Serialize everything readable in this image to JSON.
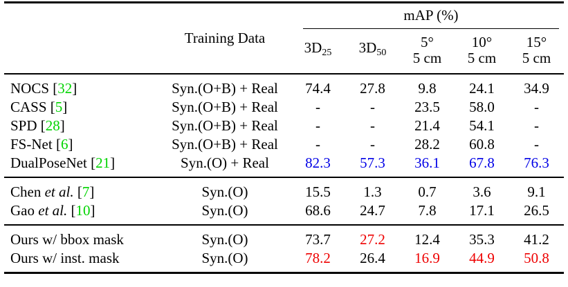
{
  "palette": {
    "green": "#00d400",
    "blue": "#0000e6",
    "red": "#ee0000",
    "rule": "#000000",
    "background": "#ffffff",
    "text": "#000000"
  },
  "format": {
    "bracket_open": "[",
    "bracket_close": "]",
    "etal": "et al."
  },
  "header": {
    "training_data": "Training Data",
    "map_group": "mAP (%)",
    "subcols": [
      {
        "main": "3D",
        "sub": "25"
      },
      {
        "main": "3D",
        "sub": "50"
      },
      {
        "line1": "5°",
        "line2": "5 cm"
      },
      {
        "line1": "10°",
        "line2": "5 cm"
      },
      {
        "line1": "15°",
        "line2": "5 cm"
      }
    ]
  },
  "table": {
    "groups": [
      {
        "rows": [
          {
            "name": "NOCS",
            "etal": false,
            "cite": "32",
            "training": "Syn.(O+B) + Real",
            "values": [
              {
                "t": "74.4"
              },
              {
                "t": "27.8"
              },
              {
                "t": "9.8"
              },
              {
                "t": "24.1"
              },
              {
                "t": "34.9"
              }
            ]
          },
          {
            "name": "CASS",
            "etal": false,
            "cite": "5",
            "training": "Syn.(O+B) + Real",
            "values": [
              {
                "t": "-"
              },
              {
                "t": "-"
              },
              {
                "t": "23.5"
              },
              {
                "t": "58.0"
              },
              {
                "t": "-"
              }
            ]
          },
          {
            "name": "SPD",
            "etal": false,
            "cite": "28",
            "training": "Syn.(O+B) + Real",
            "values": [
              {
                "t": "-"
              },
              {
                "t": "-"
              },
              {
                "t": "21.4"
              },
              {
                "t": "54.1"
              },
              {
                "t": "-"
              }
            ]
          },
          {
            "name": "FS-Net",
            "etal": false,
            "cite": "6",
            "training": "Syn.(O+B) + Real",
            "values": [
              {
                "t": "-"
              },
              {
                "t": "-"
              },
              {
                "t": "28.2"
              },
              {
                "t": "60.8"
              },
              {
                "t": "-"
              }
            ]
          },
          {
            "name": "DualPoseNet",
            "etal": false,
            "cite": "21",
            "training": "Syn.(O) + Real",
            "values": [
              {
                "t": "82.3",
                "c": "blue"
              },
              {
                "t": "57.3",
                "c": "blue"
              },
              {
                "t": "36.1",
                "c": "blue"
              },
              {
                "t": "67.8",
                "c": "blue"
              },
              {
                "t": "76.3",
                "c": "blue"
              }
            ]
          }
        ]
      },
      {
        "rows": [
          {
            "name": "Chen",
            "etal": true,
            "cite": "7",
            "training": "Syn.(O)",
            "values": [
              {
                "t": "15.5"
              },
              {
                "t": "1.3"
              },
              {
                "t": "0.7"
              },
              {
                "t": "3.6"
              },
              {
                "t": "9.1"
              }
            ]
          },
          {
            "name": "Gao",
            "etal": true,
            "cite": "10",
            "training": "Syn.(O)",
            "values": [
              {
                "t": "68.6"
              },
              {
                "t": "24.7"
              },
              {
                "t": "7.8"
              },
              {
                "t": "17.1"
              },
              {
                "t": "26.5"
              }
            ]
          }
        ]
      },
      {
        "rows": [
          {
            "name": "Ours w/ bbox mask",
            "etal": false,
            "cite": "",
            "training": "Syn.(O)",
            "values": [
              {
                "t": "73.7"
              },
              {
                "t": "27.2",
                "c": "red"
              },
              {
                "t": "12.4"
              },
              {
                "t": "35.3"
              },
              {
                "t": "41.2"
              }
            ]
          },
          {
            "name": "Ours w/ inst. mask",
            "etal": false,
            "cite": "",
            "training": "Syn.(O)",
            "values": [
              {
                "t": "78.2",
                "c": "red"
              },
              {
                "t": "26.4"
              },
              {
                "t": "16.9",
                "c": "red"
              },
              {
                "t": "44.9",
                "c": "red"
              },
              {
                "t": "50.8",
                "c": "red"
              }
            ]
          }
        ]
      }
    ]
  }
}
